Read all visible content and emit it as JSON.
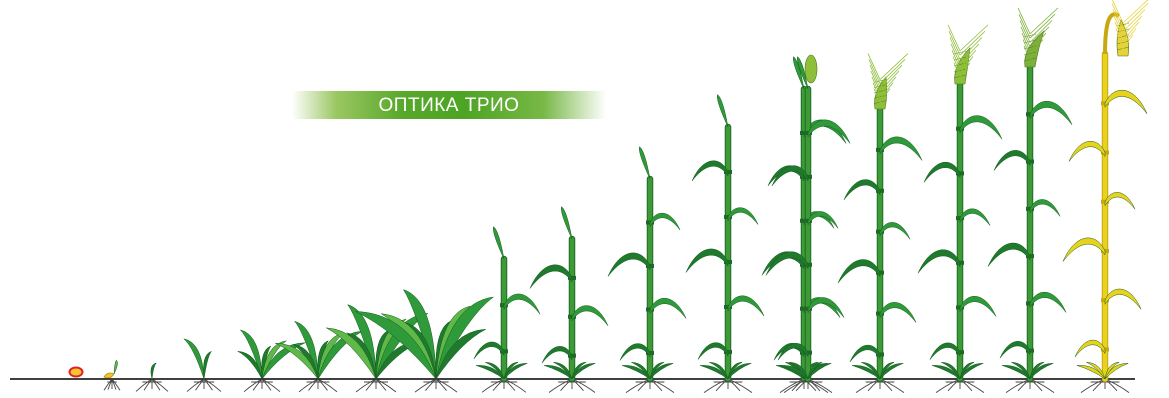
{
  "banner": {
    "label": "ОПТИКА ТРИО"
  },
  "colors": {
    "leaf_dark": "#1f7a2d",
    "leaf": "#2f9a3a",
    "leaf_light": "#5fb847",
    "stem": "#3d9a35",
    "ripe_stem": "#e7d21d",
    "ripe_outline": "#c9a80f",
    "ear_green": "#8fbf3a",
    "seed_fill": "#f6c52b",
    "seed_outline": "#e0202d",
    "ground": "#000000",
    "roots": "#444444"
  },
  "stages": [
    {
      "type": "seed"
    },
    {
      "type": "germination"
    },
    {
      "type": "leaf",
      "leaves": 1
    },
    {
      "type": "leaf",
      "leaves": 2
    },
    {
      "type": "tiller",
      "leaves": 3
    },
    {
      "type": "tiller",
      "leaves": 4
    },
    {
      "type": "tiller",
      "leaves": 5
    },
    {
      "type": "tiller",
      "leaves": 6
    },
    {
      "type": "stem",
      "nodes": 2
    },
    {
      "type": "stem",
      "nodes": 3
    },
    {
      "type": "stem",
      "nodes": 4
    },
    {
      "type": "stem",
      "nodes": 5
    },
    {
      "type": "stem",
      "nodes": 6
    },
    {
      "type": "booting",
      "nodes": 6
    },
    {
      "type": "heading",
      "nodes": 6
    },
    {
      "type": "flowering",
      "nodes": 6
    },
    {
      "type": "milk",
      "nodes": 6
    },
    {
      "type": "ripe",
      "nodes": 6
    }
  ]
}
